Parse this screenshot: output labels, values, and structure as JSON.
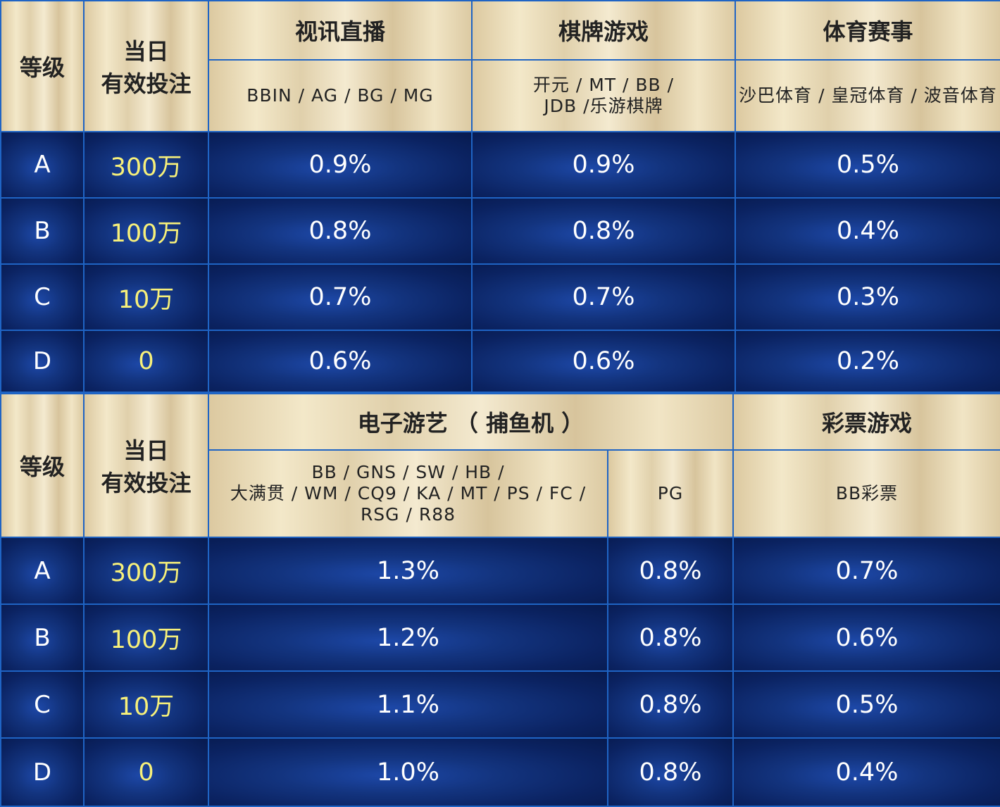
{
  "table1": {
    "headers": {
      "level": "等级",
      "bet_line1": "当日",
      "bet_line2": "有效投注",
      "groups": [
        "视讯直播",
        "棋牌游戏",
        "体育赛事"
      ],
      "providers": [
        "BBIN / AG / BG / MG",
        "开元 / MT / BB /",
        "JDB /乐游棋牌",
        "沙巴体育 / 皇冠体育 / 波音体育"
      ]
    },
    "rows": [
      {
        "level": "A",
        "bet": "300万",
        "values": [
          "0.9%",
          "0.9%",
          "0.5%"
        ]
      },
      {
        "level": "B",
        "bet": "100万",
        "values": [
          "0.8%",
          "0.8%",
          "0.4%"
        ]
      },
      {
        "level": "C",
        "bet": "10万",
        "values": [
          "0.7%",
          "0.7%",
          "0.3%"
        ]
      },
      {
        "level": "D",
        "bet": "0",
        "values": [
          "0.6%",
          "0.6%",
          "0.2%"
        ]
      }
    ]
  },
  "table2": {
    "headers": {
      "level": "等级",
      "bet_line1": "当日",
      "bet_line2": "有效投注",
      "groups": [
        "电子游艺 （ 捕鱼机 ）",
        "彩票游戏"
      ],
      "providers_line1": "BB / GNS / SW /  HB /",
      "providers_line2": "大满贯 / WM / CQ9 / KA / MT / PS / FC /",
      "providers_line3": "RSG / R88",
      "pg": "PG",
      "lottery": "BB彩票"
    },
    "rows": [
      {
        "level": "A",
        "bet": "300万",
        "values": [
          "1.3%",
          "0.8%",
          "0.7%"
        ]
      },
      {
        "level": "B",
        "bet": "100万",
        "values": [
          "1.2%",
          "0.8%",
          "0.6%"
        ]
      },
      {
        "level": "C",
        "bet": "10万",
        "values": [
          "1.1%",
          "0.8%",
          "0.5%"
        ]
      },
      {
        "level": "D",
        "bet": "0",
        "values": [
          "1.0%",
          "0.8%",
          "0.4%"
        ]
      }
    ]
  }
}
